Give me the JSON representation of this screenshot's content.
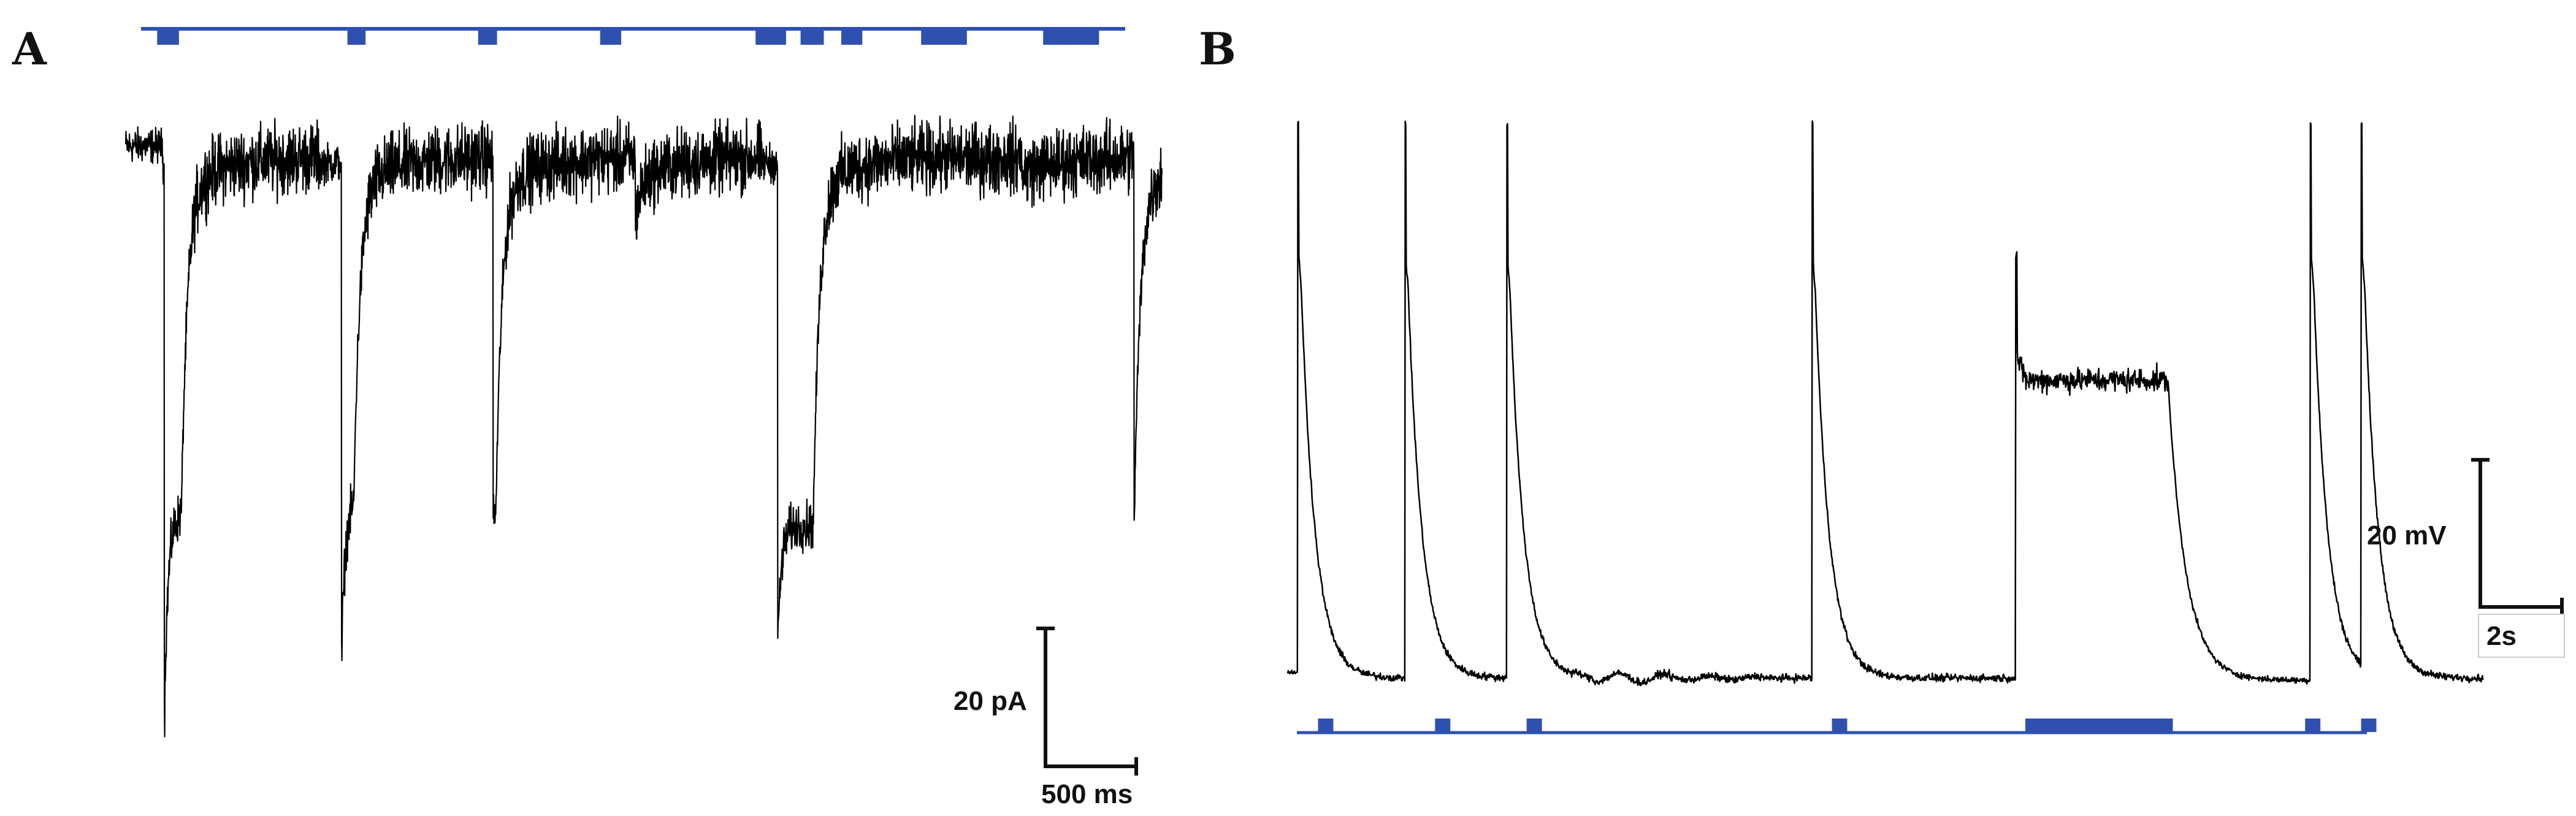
{
  "chart_data": [
    {
      "panel": "A",
      "type": "line",
      "description_unit": "current trace (voltage clamp)",
      "stimulus_color": "#3050B0",
      "trace_color": "#000000",
      "stimulus_pulses": [
        {
          "start": 35,
          "end": 185
        },
        {
          "start": 1345,
          "end": 1470
        },
        {
          "start": 2245,
          "end": 2375
        },
        {
          "start": 3085,
          "end": 3230
        },
        {
          "start": 4155,
          "end": 4365
        },
        {
          "start": 4465,
          "end": 4625
        },
        {
          "start": 4745,
          "end": 4890
        },
        {
          "start": 5295,
          "end": 5610
        },
        {
          "start": 6135,
          "end": 6520
        }
      ],
      "events": [
        {
          "start": 250,
          "peak": -42,
          "plateau": -27,
          "dur": 110
        },
        {
          "start": 1395,
          "peak": -38,
          "plateau": -26,
          "dur": 80
        },
        {
          "start": 2325,
          "peak": -38,
          "plateau": -26,
          "dur": 70
        },
        {
          "start": 3145,
          "peak": -36,
          "plateau": -26,
          "dur": 70
        },
        {
          "start": 4215,
          "peak": -37,
          "plateau": -28,
          "dur": 230
        },
        {
          "start": 4480,
          "peak": -35,
          "plateau": -28,
          "dur": 115
        },
        {
          "start": 4760,
          "peak": -33,
          "plateau": -27,
          "dur": 140
        },
        {
          "start": 5290,
          "peak": -29,
          "plateau": -28,
          "dur": 330
        },
        {
          "start": 6140,
          "peak": -36,
          "plateau": -28,
          "dur": 380
        }
      ],
      "scale_bar": {
        "y_label": "20 pA",
        "x_label": "500 ms",
        "y_value": 20,
        "x_value": 500
      }
    },
    {
      "panel": "B",
      "type": "line",
      "description_unit": "membrane voltage trace (current clamp)",
      "stimulus_color": "#3050B0",
      "trace_color": "#000000",
      "stimulus_pulses": [
        {
          "start": 0.5,
          "end": 0.8
        },
        {
          "start": 2.8,
          "end": 3.1
        },
        {
          "start": 4.6,
          "end": 4.9
        },
        {
          "start": 10.6,
          "end": 10.9
        },
        {
          "start": 14.4,
          "end": 17.3
        },
        {
          "start": 19.9,
          "end": 20.2
        },
        {
          "start": 21.0,
          "end": 21.3
        }
      ],
      "spikes": [
        0.2,
        2.3,
        4.3,
        10.3,
        14.3,
        20.1,
        21.1
      ],
      "sustained_plateau": {
        "start": 14.3,
        "end": 17.3,
        "level": 40
      },
      "scale_bar": {
        "y_label": "20 mV",
        "x_label": "2s",
        "y_value": 20,
        "x_value": 2
      }
    }
  ],
  "panels": {
    "a_label": "A",
    "b_label": "B"
  }
}
